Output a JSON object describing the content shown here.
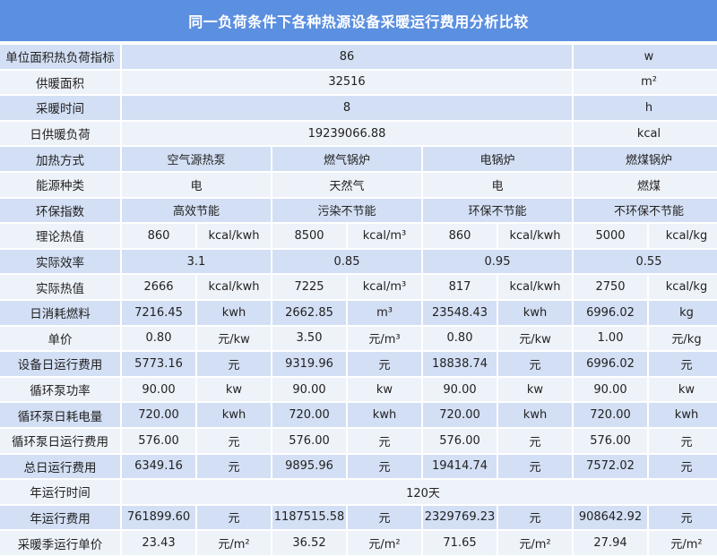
{
  "title": "同一负荷条件下各种热源设备采暖运行费用分析比较",
  "colors": {
    "header": "#5b8fe0",
    "row_alt": "#d3dff4",
    "row_light": "#eef2f9"
  },
  "rows": [
    {
      "label": "单位面积热负荷指标",
      "cells": [
        {
          "text": "86",
          "span": 6
        },
        {
          "text": "w",
          "span": 2
        }
      ]
    },
    {
      "label": "供暖面积",
      "cells": [
        {
          "text": "32516",
          "span": 6
        },
        {
          "text": "m²",
          "span": 2
        }
      ]
    },
    {
      "label": "采暖时间",
      "cells": [
        {
          "text": "8",
          "span": 6
        },
        {
          "text": "h",
          "span": 2
        }
      ]
    },
    {
      "label": "日供暖负荷",
      "cells": [
        {
          "text": "19239066.88",
          "span": 6
        },
        {
          "text": "kcal",
          "span": 2
        }
      ]
    },
    {
      "label": "加热方式",
      "cells": [
        {
          "text": "空气源热泵",
          "span": 2
        },
        {
          "text": "燃气锅炉",
          "span": 2
        },
        {
          "text": "电锅炉",
          "span": 2
        },
        {
          "text": "燃煤锅炉",
          "span": 2
        }
      ]
    },
    {
      "label": "能源种类",
      "cells": [
        {
          "text": "电",
          "span": 2
        },
        {
          "text": "天然气",
          "span": 2
        },
        {
          "text": "电",
          "span": 2
        },
        {
          "text": "燃煤",
          "span": 2
        }
      ]
    },
    {
      "label": "环保指数",
      "cells": [
        {
          "text": "高效节能",
          "span": 2
        },
        {
          "text": "污染不节能",
          "span": 2
        },
        {
          "text": "环保不节能",
          "span": 2
        },
        {
          "text": "不环保不节能",
          "span": 2
        }
      ]
    },
    {
      "label": "理论热值",
      "cells": [
        {
          "text": "860",
          "span": 1
        },
        {
          "text": "kcal/kwh",
          "span": 1
        },
        {
          "text": "8500",
          "span": 1
        },
        {
          "text": "kcal/m³",
          "span": 1
        },
        {
          "text": "860",
          "span": 1
        },
        {
          "text": "kcal/kwh",
          "span": 1
        },
        {
          "text": "5000",
          "span": 1
        },
        {
          "text": "kcal/kg",
          "span": 1
        }
      ]
    },
    {
      "label": "实际效率",
      "cells": [
        {
          "text": "3.1",
          "span": 2
        },
        {
          "text": "0.85",
          "span": 2
        },
        {
          "text": "0.95",
          "span": 2
        },
        {
          "text": "0.55",
          "span": 2
        }
      ]
    },
    {
      "label": "实际热值",
      "cells": [
        {
          "text": "2666",
          "span": 1
        },
        {
          "text": "kcal/kwh",
          "span": 1
        },
        {
          "text": "7225",
          "span": 1
        },
        {
          "text": "kcal/m³",
          "span": 1
        },
        {
          "text": "817",
          "span": 1
        },
        {
          "text": "kcal/kwh",
          "span": 1
        },
        {
          "text": "2750",
          "span": 1
        },
        {
          "text": "kcal/kg",
          "span": 1
        }
      ]
    },
    {
      "label": "日消耗燃料",
      "cells": [
        {
          "text": "7216.45",
          "span": 1
        },
        {
          "text": "kwh",
          "span": 1
        },
        {
          "text": "2662.85",
          "span": 1
        },
        {
          "text": "m³",
          "span": 1
        },
        {
          "text": "23548.43",
          "span": 1
        },
        {
          "text": "kwh",
          "span": 1
        },
        {
          "text": "6996.02",
          "span": 1
        },
        {
          "text": "kg",
          "span": 1
        }
      ]
    },
    {
      "label": "单价",
      "cells": [
        {
          "text": "0.80",
          "span": 1
        },
        {
          "text": "元/kw",
          "span": 1
        },
        {
          "text": "3.50",
          "span": 1
        },
        {
          "text": "元/m³",
          "span": 1
        },
        {
          "text": "0.80",
          "span": 1
        },
        {
          "text": "元/kw",
          "span": 1
        },
        {
          "text": "1.00",
          "span": 1
        },
        {
          "text": "元/kg",
          "span": 1
        }
      ]
    },
    {
      "label": "设备日运行费用",
      "cells": [
        {
          "text": "5773.16",
          "span": 1
        },
        {
          "text": "元",
          "span": 1
        },
        {
          "text": "9319.96",
          "span": 1
        },
        {
          "text": "元",
          "span": 1
        },
        {
          "text": "18838.74",
          "span": 1
        },
        {
          "text": "元",
          "span": 1
        },
        {
          "text": "6996.02",
          "span": 1
        },
        {
          "text": "元",
          "span": 1
        }
      ]
    },
    {
      "label": "循环泵功率",
      "cells": [
        {
          "text": "90.00",
          "span": 1
        },
        {
          "text": "kw",
          "span": 1
        },
        {
          "text": "90.00",
          "span": 1
        },
        {
          "text": "kw",
          "span": 1
        },
        {
          "text": "90.00",
          "span": 1
        },
        {
          "text": "kw",
          "span": 1
        },
        {
          "text": "90.00",
          "span": 1
        },
        {
          "text": "kw",
          "span": 1
        }
      ]
    },
    {
      "label": "循环泵日耗电量",
      "cells": [
        {
          "text": "720.00",
          "span": 1
        },
        {
          "text": "kwh",
          "span": 1
        },
        {
          "text": "720.00",
          "span": 1
        },
        {
          "text": "kwh",
          "span": 1
        },
        {
          "text": "720.00",
          "span": 1
        },
        {
          "text": "kwh",
          "span": 1
        },
        {
          "text": "720.00",
          "span": 1
        },
        {
          "text": "kwh",
          "span": 1
        }
      ]
    },
    {
      "label": "循环泵日运行费用",
      "cells": [
        {
          "text": "576.00",
          "span": 1
        },
        {
          "text": "元",
          "span": 1
        },
        {
          "text": "576.00",
          "span": 1
        },
        {
          "text": "元",
          "span": 1
        },
        {
          "text": "576.00",
          "span": 1
        },
        {
          "text": "元",
          "span": 1
        },
        {
          "text": "576.00",
          "span": 1
        },
        {
          "text": "元",
          "span": 1
        }
      ]
    },
    {
      "label": "总日运行费用",
      "cells": [
        {
          "text": "6349.16",
          "span": 1
        },
        {
          "text": "元",
          "span": 1
        },
        {
          "text": "9895.96",
          "span": 1
        },
        {
          "text": "元",
          "span": 1
        },
        {
          "text": "19414.74",
          "span": 1
        },
        {
          "text": "元",
          "span": 1
        },
        {
          "text": "7572.02",
          "span": 1
        },
        {
          "text": "元",
          "span": 1
        }
      ]
    },
    {
      "label": "年运行时间",
      "cells": [
        {
          "text": "120天",
          "span": 8
        }
      ]
    },
    {
      "label": "年运行费用",
      "cells": [
        {
          "text": "761899.60",
          "span": 1
        },
        {
          "text": "元",
          "span": 1
        },
        {
          "text": "1187515.58",
          "span": 1
        },
        {
          "text": "元",
          "span": 1
        },
        {
          "text": "2329769.23",
          "span": 1
        },
        {
          "text": "元",
          "span": 1
        },
        {
          "text": "908642.92",
          "span": 1
        },
        {
          "text": "元",
          "span": 1
        }
      ]
    },
    {
      "label": "采暖季运行单价",
      "cells": [
        {
          "text": "23.43",
          "span": 1
        },
        {
          "text": "元/m²",
          "span": 1
        },
        {
          "text": "36.52",
          "span": 1
        },
        {
          "text": "元/m²",
          "span": 1
        },
        {
          "text": "71.65",
          "span": 1
        },
        {
          "text": "元/m²",
          "span": 1
        },
        {
          "text": "27.94",
          "span": 1
        },
        {
          "text": "元/m²",
          "span": 1
        }
      ]
    }
  ]
}
